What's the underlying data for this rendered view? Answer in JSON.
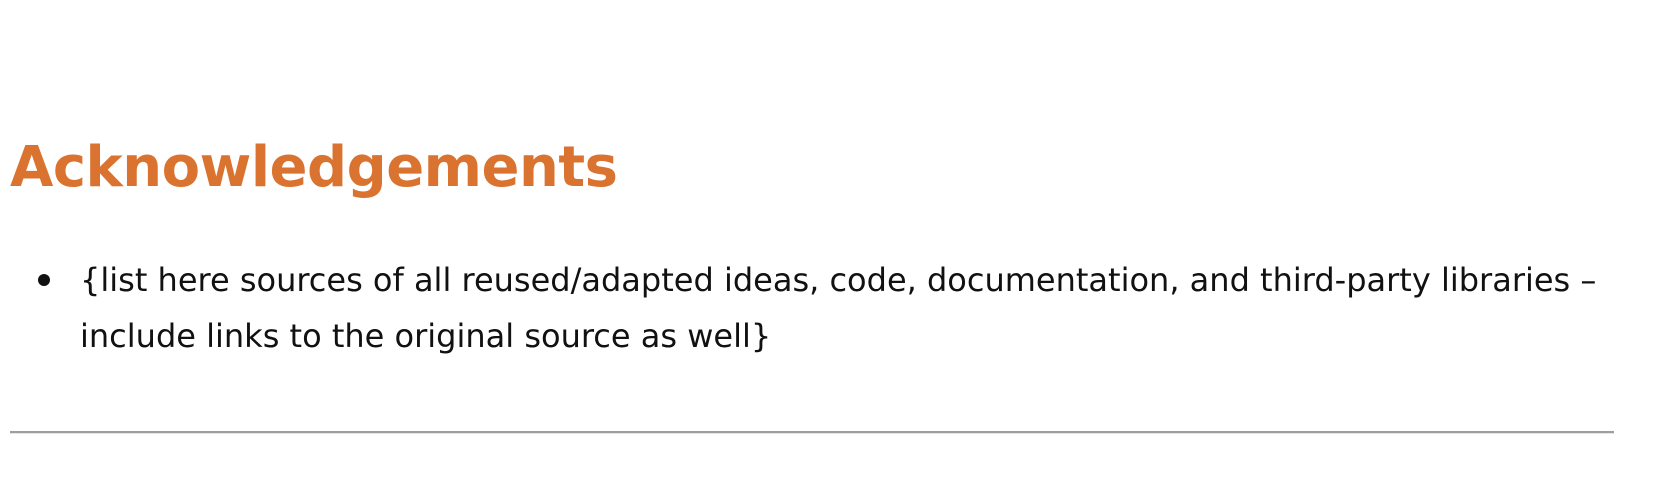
{
  "section": {
    "heading": "Acknowledgements",
    "heading_color": "#d9732f",
    "items": [
      {
        "text": "{list here sources of all reused/adapted ideas, code, documentation, and third-party libraries – include links to the original source as well}"
      }
    ]
  }
}
